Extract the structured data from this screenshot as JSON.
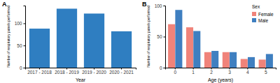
{
  "chart_data": [
    {
      "type": "bar",
      "title": "A",
      "x_label": "Year",
      "y_label": "Number of respiratory panels performed",
      "categories": [
        "2017 - 2018",
        "2018 - 2019",
        "2019 - 2020",
        "2020 - 2021"
      ],
      "values": [
        88,
        133,
        122,
        82
      ],
      "color": "#2f7ec1",
      "ylim": [
        0,
        140
      ],
      "yticks": [
        0,
        50,
        100
      ],
      "grid": false
    },
    {
      "type": "bar",
      "title": "B",
      "x_label": "Age (years)",
      "y_label": "Number of respiratory panels performed",
      "categories": [
        "0",
        "1",
        "2",
        "3",
        "4",
        "5"
      ],
      "series": [
        {
          "name": "Female",
          "color": "#f0837a",
          "values": [
            70,
            65,
            25,
            25,
            14,
            13
          ]
        },
        {
          "name": "Male",
          "color": "#3f7fc0",
          "values": [
            93,
            59,
            27,
            25,
            17,
            22
          ]
        }
      ],
      "legend": "top-right",
      "legend_title": "Sex",
      "ylim": [
        0,
        100
      ],
      "yticks": [
        0,
        50,
        100
      ],
      "grid": false
    }
  ]
}
